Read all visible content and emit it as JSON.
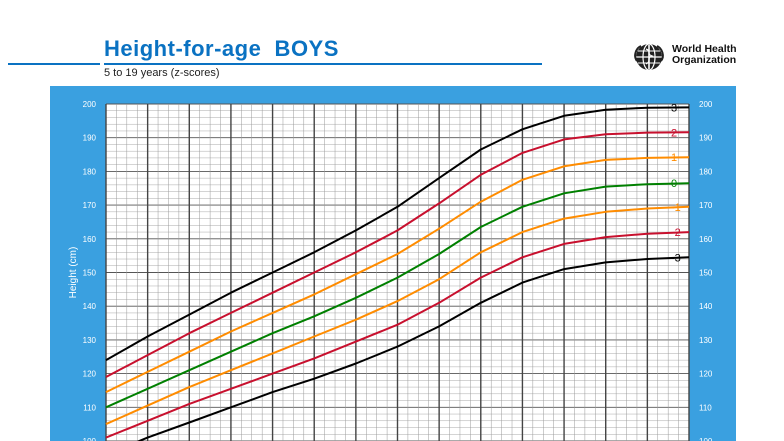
{
  "header": {
    "title": "Height-for-age  BOYS",
    "subtitle": "5 to 19 years (z-scores)",
    "logo_line1": "World Health",
    "logo_line2": "Organization",
    "brand_color": "#0a72c2"
  },
  "chart_data": {
    "type": "line",
    "title": "Height-for-age  BOYS",
    "subtitle": "5 to 19 years (z-scores)",
    "ylabel": "Height (cm)",
    "xlabel": "",
    "ylim": [
      100,
      200
    ],
    "xlim": [
      5,
      19
    ],
    "y_ticks": [
      110,
      120,
      130,
      140,
      150,
      160,
      170,
      180,
      190,
      200
    ],
    "grid": true,
    "legend": "right-end labels",
    "panel_color": "#3aa0e0",
    "series": [
      {
        "name": "3",
        "color": "#000000",
        "x": [
          5,
          6,
          7,
          8,
          9,
          10,
          11,
          12,
          13,
          14,
          15,
          16,
          17,
          18,
          19
        ],
        "values": [
          124.0,
          131.0,
          137.5,
          144.0,
          150.0,
          156.0,
          162.5,
          169.5,
          178.0,
          186.5,
          192.5,
          196.5,
          198.3,
          198.9,
          199.0
        ]
      },
      {
        "name": "2",
        "color": "#c8102e",
        "x": [
          5,
          6,
          7,
          8,
          9,
          10,
          11,
          12,
          13,
          14,
          15,
          16,
          17,
          18,
          19
        ],
        "values": [
          119.0,
          125.5,
          132.0,
          138.0,
          144.0,
          150.0,
          156.0,
          162.5,
          170.5,
          179.0,
          185.5,
          189.5,
          191.0,
          191.5,
          191.6
        ]
      },
      {
        "name": "1",
        "color": "#ff8c00",
        "x": [
          5,
          6,
          7,
          8,
          9,
          10,
          11,
          12,
          13,
          14,
          15,
          16,
          17,
          18,
          19
        ],
        "values": [
          114.5,
          120.5,
          126.5,
          132.5,
          138.0,
          143.5,
          149.5,
          155.5,
          163.0,
          171.0,
          177.5,
          181.5,
          183.4,
          184.0,
          184.2
        ]
      },
      {
        "name": "0",
        "color": "#008000",
        "x": [
          5,
          6,
          7,
          8,
          9,
          10,
          11,
          12,
          13,
          14,
          15,
          16,
          17,
          18,
          19
        ],
        "values": [
          110.0,
          115.5,
          121.0,
          126.5,
          132.0,
          137.0,
          142.5,
          148.5,
          155.5,
          163.5,
          169.5,
          173.5,
          175.5,
          176.2,
          176.5
        ]
      },
      {
        "name": "-1",
        "color": "#ff8c00",
        "x": [
          5,
          6,
          7,
          8,
          9,
          10,
          11,
          12,
          13,
          14,
          15,
          16,
          17,
          18,
          19
        ],
        "values": [
          105.0,
          110.5,
          116.0,
          121.0,
          126.0,
          131.0,
          136.0,
          141.5,
          148.0,
          156.0,
          162.0,
          166.0,
          168.0,
          169.0,
          169.5
        ]
      },
      {
        "name": "-2",
        "color": "#c8102e",
        "x": [
          5,
          6,
          7,
          8,
          9,
          10,
          11,
          12,
          13,
          14,
          15,
          16,
          17,
          18,
          19
        ],
        "values": [
          101.0,
          106.0,
          111.0,
          115.5,
          120.0,
          124.5,
          129.5,
          134.5,
          141.0,
          148.5,
          154.5,
          158.5,
          160.5,
          161.5,
          162.0
        ]
      },
      {
        "name": "-3",
        "color": "#000000",
        "x": [
          5,
          6,
          7,
          8,
          9,
          10,
          11,
          12,
          13,
          14,
          15,
          16,
          17,
          18,
          19
        ],
        "values": [
          96.0,
          101.0,
          105.5,
          110.0,
          114.5,
          118.5,
          123.0,
          128.0,
          134.0,
          141.0,
          147.0,
          151.0,
          153.0,
          154.0,
          154.5
        ]
      }
    ]
  }
}
